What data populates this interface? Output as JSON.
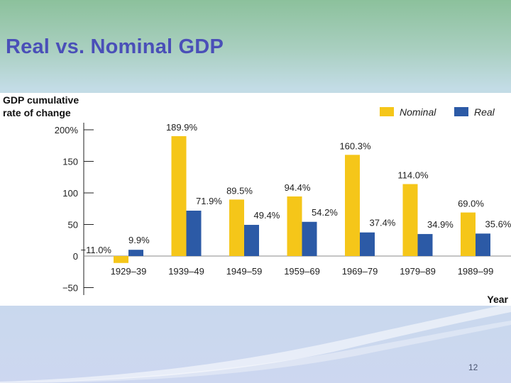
{
  "slide": {
    "title": "Real vs. Nominal GDP",
    "page_number": "12"
  },
  "chart_data": {
    "type": "bar",
    "ylabel_lines": [
      "GDP cumulative",
      "rate of change"
    ],
    "xlabel": "Year",
    "categories": [
      "1929–39",
      "1939–49",
      "1949–59",
      "1959–69",
      "1969–79",
      "1979–89",
      "1989–99"
    ],
    "series": [
      {
        "name": "Nominal",
        "color": "#f5c619",
        "values": [
          -11.0,
          189.9,
          89.5,
          94.4,
          160.3,
          114.0,
          69.0
        ],
        "labels": [
          "−11.0%",
          "189.9%",
          "89.5%",
          "94.4%",
          "160.3%",
          "114.0%",
          "69.0%"
        ]
      },
      {
        "name": "Real",
        "color": "#2c5aa6",
        "values": [
          9.9,
          71.9,
          49.4,
          54.2,
          37.4,
          34.9,
          35.6
        ],
        "labels": [
          "9.9%",
          "71.9%",
          "49.4%",
          "54.2%",
          "37.4%",
          "34.9%",
          "35.6%"
        ]
      }
    ],
    "yticks": [
      200,
      150,
      100,
      50,
      0,
      -50
    ],
    "ytick_labels": [
      "200%",
      "150",
      "100",
      "50",
      "0",
      "−50"
    ],
    "ylim": [
      -50,
      200
    ],
    "legend_position": "top-right"
  }
}
